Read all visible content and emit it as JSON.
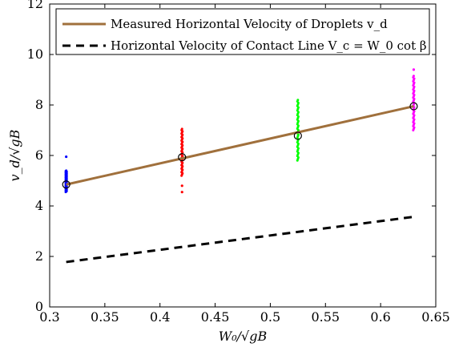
{
  "chart_data": {
    "type": "line",
    "title": "",
    "xlabel": "W₀/√gB",
    "ylabel": "v_d/√gB",
    "xlim": [
      0.3,
      0.65
    ],
    "ylim": [
      0,
      12
    ],
    "x_ticks": [
      0.3,
      0.35,
      0.4,
      0.45,
      0.5,
      0.55,
      0.6,
      0.65
    ],
    "x_tick_labels": [
      "0.3",
      "0.35",
      "0.4",
      "0.45",
      "0.5",
      "0.55",
      "0.6",
      "0.65"
    ],
    "y_ticks": [
      0,
      2,
      4,
      6,
      8,
      10,
      12
    ],
    "y_tick_labels": [
      "0",
      "2",
      "4",
      "6",
      "8",
      "10",
      "12"
    ],
    "grid": false,
    "legend_position": "top",
    "series": [
      {
        "name": "Measured Horizontal Velocity of Droplets v_d",
        "style": "solid",
        "color": "#a0703c",
        "x": [
          0.315,
          0.63
        ],
        "y": [
          4.85,
          7.95
        ]
      },
      {
        "name": "Horizontal Velocity of Contact Line V_c = W_0 cot β",
        "style": "dashed",
        "color": "#000000",
        "x": [
          0.315,
          0.63
        ],
        "y": [
          1.78,
          3.57
        ]
      }
    ],
    "mean_markers": {
      "x": [
        0.315,
        0.42,
        0.525,
        0.63
      ],
      "y": [
        4.85,
        5.93,
        6.78,
        7.95
      ]
    },
    "scatter_clusters": [
      {
        "x": 0.315,
        "color": "#0000ff",
        "y_min": 4.55,
        "y_max": 5.4,
        "outliers": [
          5.95
        ]
      },
      {
        "x": 0.42,
        "color": "#ff0000",
        "y_min": 5.2,
        "y_max": 7.05,
        "outliers": [
          4.55,
          4.8
        ]
      },
      {
        "x": 0.525,
        "color": "#00ff00",
        "y_min": 5.8,
        "y_max": 8.2,
        "outliers": []
      },
      {
        "x": 0.63,
        "color": "#ff00ff",
        "y_min": 7.0,
        "y_max": 9.15,
        "outliers": [
          9.4
        ]
      }
    ]
  }
}
